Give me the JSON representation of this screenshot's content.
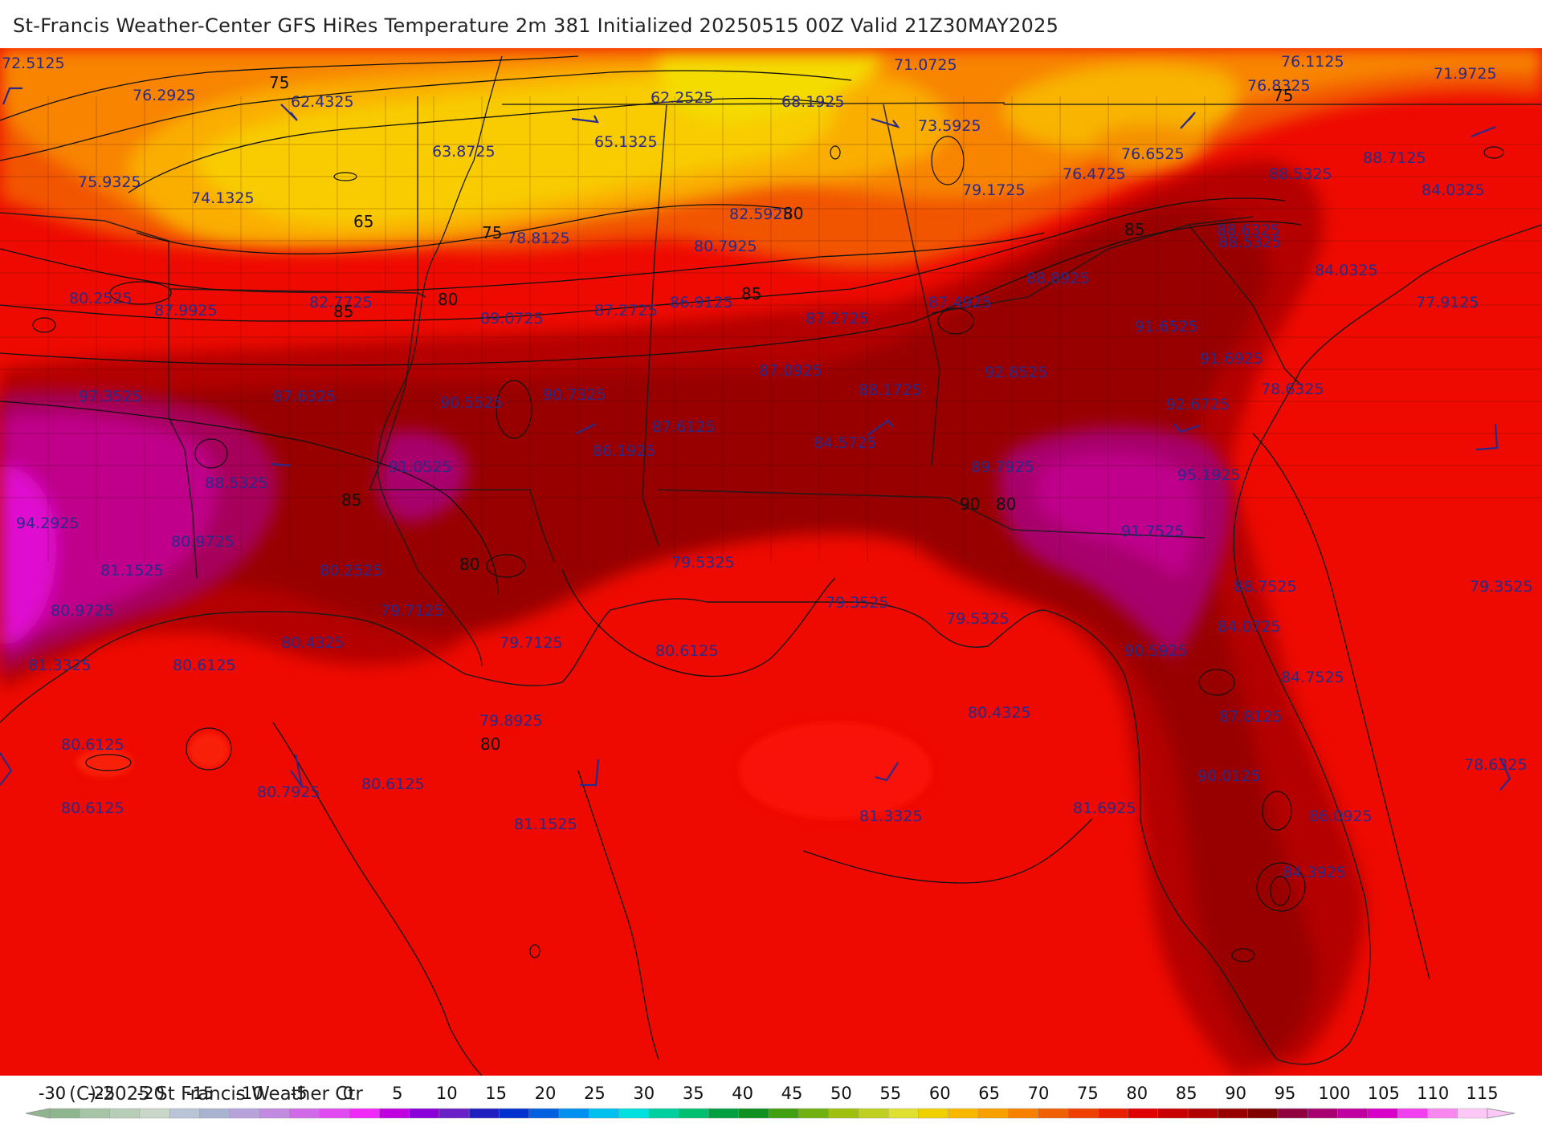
{
  "header": {
    "title": "St-Francis Weather-Center GFS HiRes Temperature 2m  381 Initialized 20250515 00Z Valid 21Z30MAY2025"
  },
  "footer": {
    "copyright": "(C)-2025 St Francis Weather Ctr"
  },
  "colorbar": {
    "ticks": [
      "-30",
      "-25",
      "-20",
      "-15",
      "-10",
      "-5",
      "0",
      "5",
      "10",
      "15",
      "20",
      "25",
      "30",
      "35",
      "40",
      "45",
      "50",
      "55",
      "60",
      "65",
      "70",
      "75",
      "80",
      "85",
      "90",
      "95",
      "100",
      "105",
      "110",
      "115"
    ],
    "colors": [
      "#8fb58f",
      "#a7c4a7",
      "#b8cdb8",
      "#c9d6c9",
      "#b9c4d6",
      "#a9b3cf",
      "#b7a3d9",
      "#c08be0",
      "#d06ae8",
      "#e04af0",
      "#f028f8",
      "#c000e0",
      "#8a00d8",
      "#6a20c8",
      "#2020c0",
      "#0030d0",
      "#0060e0",
      "#0090f0",
      "#00c0f0",
      "#00e0e0",
      "#00d0a0",
      "#00c070",
      "#00a040",
      "#109020",
      "#40a010",
      "#70b010",
      "#a0c010",
      "#c0d020",
      "#e0e030",
      "#f0d000",
      "#f8b800",
      "#f8a000",
      "#f88000",
      "#f06000",
      "#f04000",
      "#e82000",
      "#e00000",
      "#c80000",
      "#b00000",
      "#980000",
      "#800000",
      "#900040",
      "#a80070",
      "#c000a0",
      "#d800c8",
      "#f040f0",
      "#f888f0",
      "#fcc8f8"
    ]
  },
  "map": {
    "value_labels": [
      "72.5125",
      "76.2925",
      "62.4325",
      "63.8725",
      "65.1325",
      "62.2525",
      "68.1925",
      "71.0725",
      "76.1125",
      "76.8325",
      "71.9725",
      "75.9325",
      "74.1325",
      "78.8125",
      "82.5925",
      "73.5925",
      "79.1725",
      "76.4725",
      "76.6525",
      "88.7125",
      "88.5325",
      "84.0325",
      "80.7925",
      "88.6325",
      "88.5325",
      "84.0325",
      "80.2525",
      "87.9925",
      "82.7725",
      "89.0725",
      "87.2725",
      "86.9125",
      "87.2725",
      "87.4925",
      "88.8925",
      "77.9125",
      "97.3525",
      "87.6325",
      "90.5525",
      "90.7325",
      "87.0925",
      "88.1725",
      "92.8525",
      "91.6525",
      "91.6925",
      "78.6325",
      "92.6725",
      "87.6125",
      "86.1925",
      "84.5725",
      "89.7925",
      "91.0525",
      "88.5325",
      "95.1925",
      "94.2925",
      "80.9725",
      "81.1525",
      "80.2525",
      "79.5325",
      "91.7525",
      "80.9725",
      "79.7125",
      "79.3525",
      "79.5325",
      "79.3525",
      "88.7525",
      "80.4325",
      "79.7125",
      "80.6125",
      "84.0725",
      "81.3325",
      "80.6125",
      "90.5925",
      "84.7525",
      "79.8925",
      "80.4325",
      "87.8125",
      "80.6125",
      "90.0125",
      "78.6325",
      "80.7925",
      "80.6125",
      "86.0925",
      "80.6125",
      "81.1525",
      "81.3325",
      "81.6925",
      "84.3925"
    ],
    "contour_labels": [
      "75",
      "65",
      "75",
      "80",
      "85",
      "80",
      "85",
      "85",
      "75",
      "85",
      "90",
      "80",
      "80",
      "80"
    ]
  }
}
